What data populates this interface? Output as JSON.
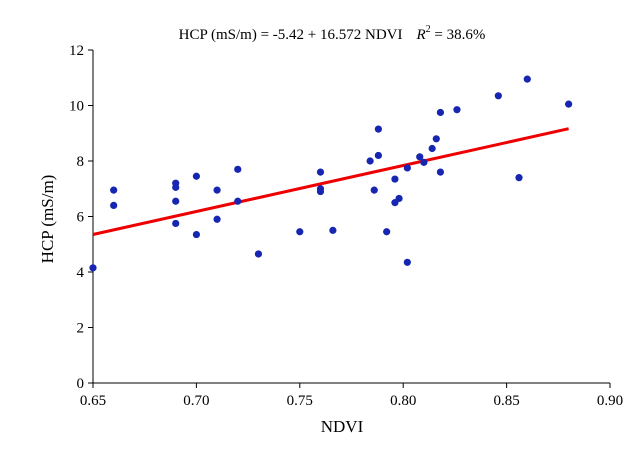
{
  "chart_data": {
    "type": "scatter",
    "equation_text": "HCP (mS/m) = -5.42 + 16.572 NDVI",
    "r2_label": "R",
    "r2_sup": "2",
    "r2_value": " = 38.6%",
    "xlabel": "NDVI",
    "ylabel": "HCP (mS/m)",
    "xlim": [
      0.65,
      0.9
    ],
    "ylim": [
      0,
      12
    ],
    "xticks": [
      "0.65",
      "0.70",
      "0.75",
      "0.80",
      "0.85",
      "0.90"
    ],
    "yticks": [
      "0",
      "2",
      "4",
      "6",
      "8",
      "10",
      "12"
    ],
    "grid": false,
    "points_color": "#1626b0",
    "line_color": "#ee0000",
    "regression": {
      "intercept": -5.42,
      "slope": 16.572
    },
    "points": [
      {
        "x": 0.65,
        "y": 4.15
      },
      {
        "x": 0.66,
        "y": 6.95
      },
      {
        "x": 0.66,
        "y": 6.4
      },
      {
        "x": 0.69,
        "y": 7.2
      },
      {
        "x": 0.69,
        "y": 7.05
      },
      {
        "x": 0.69,
        "y": 6.55
      },
      {
        "x": 0.69,
        "y": 5.75
      },
      {
        "x": 0.7,
        "y": 7.45
      },
      {
        "x": 0.7,
        "y": 5.35
      },
      {
        "x": 0.71,
        "y": 6.95
      },
      {
        "x": 0.71,
        "y": 5.9
      },
      {
        "x": 0.72,
        "y": 7.7
      },
      {
        "x": 0.72,
        "y": 6.55
      },
      {
        "x": 0.73,
        "y": 4.65
      },
      {
        "x": 0.75,
        "y": 5.45
      },
      {
        "x": 0.76,
        "y": 7.6
      },
      {
        "x": 0.76,
        "y": 7.0
      },
      {
        "x": 0.76,
        "y": 6.9
      },
      {
        "x": 0.766,
        "y": 5.5
      },
      {
        "x": 0.784,
        "y": 8.0
      },
      {
        "x": 0.786,
        "y": 6.95
      },
      {
        "x": 0.788,
        "y": 9.15
      },
      {
        "x": 0.788,
        "y": 8.2
      },
      {
        "x": 0.792,
        "y": 5.45
      },
      {
        "x": 0.796,
        "y": 7.35
      },
      {
        "x": 0.796,
        "y": 6.5
      },
      {
        "x": 0.798,
        "y": 6.65
      },
      {
        "x": 0.802,
        "y": 7.75
      },
      {
        "x": 0.802,
        "y": 4.35
      },
      {
        "x": 0.808,
        "y": 8.15
      },
      {
        "x": 0.81,
        "y": 7.95
      },
      {
        "x": 0.814,
        "y": 8.45
      },
      {
        "x": 0.816,
        "y": 8.8
      },
      {
        "x": 0.818,
        "y": 9.75
      },
      {
        "x": 0.818,
        "y": 7.6
      },
      {
        "x": 0.826,
        "y": 9.85
      },
      {
        "x": 0.846,
        "y": 10.35
      },
      {
        "x": 0.856,
        "y": 7.4
      },
      {
        "x": 0.86,
        "y": 10.95
      },
      {
        "x": 0.88,
        "y": 10.05
      }
    ]
  }
}
